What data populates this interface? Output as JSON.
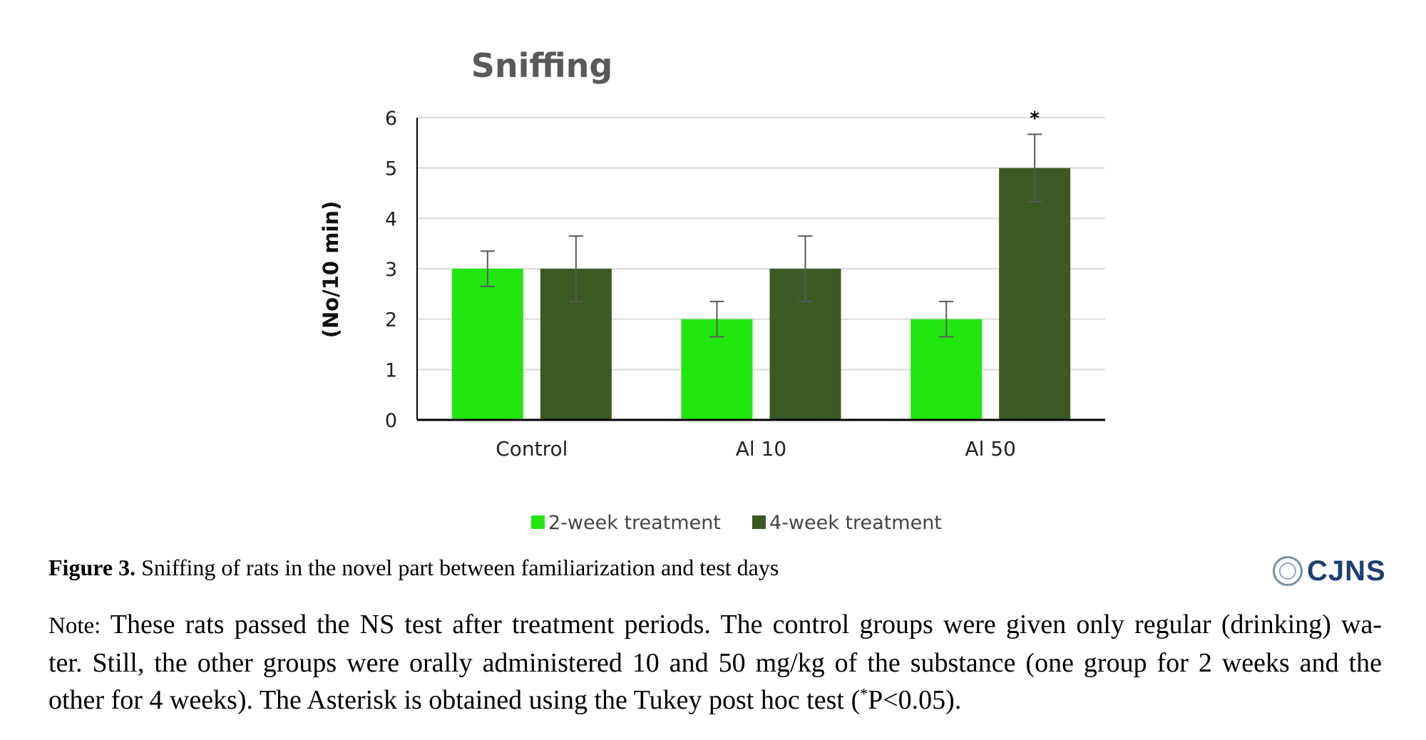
{
  "chart_data": {
    "type": "bar",
    "title": "Sniffing",
    "ylabel": "(No/10 min)",
    "xlabel": "",
    "categories": [
      "Control",
      "Al 10",
      "Al 50"
    ],
    "series": [
      {
        "name": "2-week treatment",
        "color": "#22e610",
        "values": [
          3,
          2,
          2
        ],
        "errors": [
          0.35,
          0.35,
          0.35
        ]
      },
      {
        "name": "4-week treatment",
        "color": "#3b5a22",
        "values": [
          3,
          3,
          5
        ],
        "errors": [
          0.65,
          0.65,
          0.67
        ]
      }
    ],
    "ylim": [
      0,
      6
    ],
    "yticks": [
      "0",
      "1",
      "2",
      "3",
      "4",
      "5",
      "6"
    ],
    "grid": true,
    "legend_position": "bottom",
    "annotations": [
      {
        "text": "*",
        "category": "Al 50",
        "series": "4-week treatment"
      }
    ]
  },
  "caption": {
    "label": "Figure 3.",
    "text": "Sniffing of rats in the novel part between familiarization and test days"
  },
  "logo": {
    "text": "CJNS"
  },
  "note": {
    "prefix": "Note:",
    "line1": "These rats passed the NS test after treatment periods. The control groups were given only regular (drinking) wa-",
    "line2": "ter. Still, the other groups were orally administered 10 and 50 mg/kg of the substance (one group for 2 weeks and the",
    "line3a": "other for 4 weeks). The Asterisk is obtained using the Tukey post hoc test (",
    "line3sup": "*",
    "line3b": "P<0.05)."
  }
}
